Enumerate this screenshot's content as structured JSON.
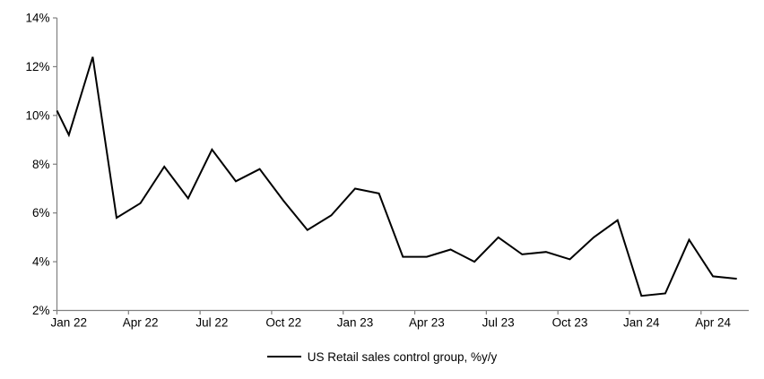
{
  "figure": {
    "title": "",
    "background_color": "#ffffff"
  },
  "chart_data": {
    "type": "line",
    "title": "",
    "legend_label": "US Retail sales control group, %y/y",
    "legend_position": "bottom-center",
    "grid": false,
    "categories": [
      "Jan 22",
      "Feb 22",
      "Mar 22",
      "Apr 22",
      "May 22",
      "Jun 22",
      "Jul 22",
      "Aug 22",
      "Sep 22",
      "Oct 22",
      "Nov 22",
      "Dec 22",
      "Jan 23",
      "Feb 23",
      "Mar 23",
      "Apr 23",
      "May 23",
      "Jun 23",
      "Jul 23",
      "Aug 23",
      "Sep 23",
      "Oct 23",
      "Nov 23",
      "Dec 23",
      "Jan 24",
      "Feb 24",
      "Mar 24",
      "Apr 24",
      "May 24"
    ],
    "values": [
      9.2,
      12.4,
      5.8,
      6.4,
      7.9,
      6.6,
      8.6,
      7.3,
      7.8,
      6.5,
      5.3,
      5.9,
      7.0,
      6.8,
      4.2,
      4.2,
      4.5,
      4.0,
      5.0,
      4.3,
      4.4,
      4.1,
      5.0,
      5.7,
      2.6,
      2.7,
      4.9,
      3.4,
      3.3
    ],
    "left_edge_value": 10.2,
    "x_tick_labels": [
      "Jan 22",
      "Apr 22",
      "Jul 22",
      "Oct 22",
      "Jan 23",
      "Apr 23",
      "Jul 23",
      "Oct 23",
      "Jan 24",
      "Apr 24"
    ],
    "x_tick_every_n_months": 3,
    "y_ticks": [
      2,
      4,
      6,
      8,
      10,
      12,
      14
    ],
    "y_tick_labels": [
      "2%",
      "4%",
      "6%",
      "8%",
      "10%",
      "12%",
      "14%"
    ],
    "ylim": [
      2,
      14
    ],
    "colors": {
      "line": "#000000",
      "axis": "#808080",
      "text": "#000000"
    }
  }
}
